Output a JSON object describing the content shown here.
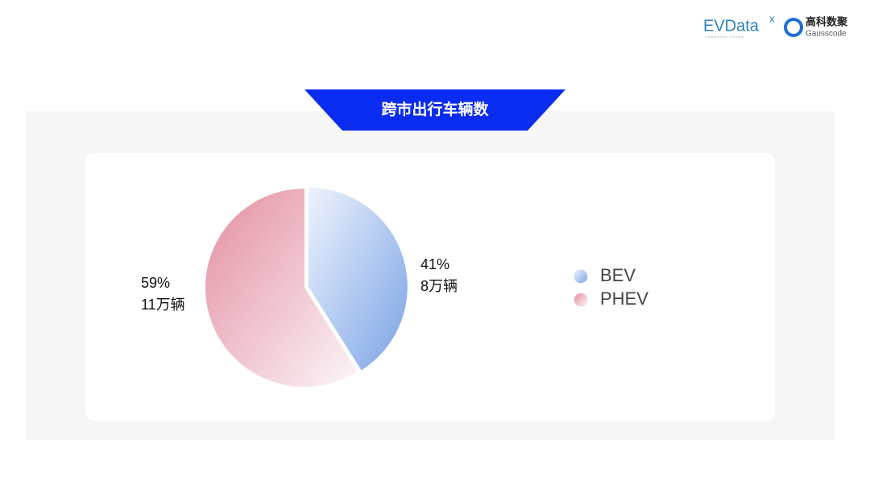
{
  "logos": {
    "brand": "EVData",
    "brand_mark": "x",
    "brand_sub": "SHANGHAI CHINA",
    "partner": "高科数聚",
    "partner_sub": "Gausscode"
  },
  "chart_data": {
    "type": "pie",
    "title": "跨市出行车辆数",
    "categories": [
      "BEV",
      "PHEV"
    ],
    "values": [
      41,
      59
    ],
    "value_labels": [
      "41%",
      "59%"
    ],
    "count_labels": [
      "8万辆",
      "11万辆"
    ],
    "colors": [
      "#7aa3e6",
      "#e48ea1"
    ],
    "legend": "right"
  }
}
